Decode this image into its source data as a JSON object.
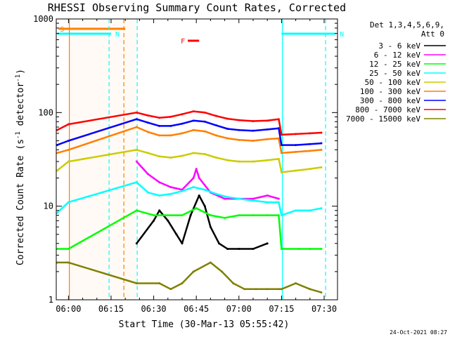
{
  "chart_data": {
    "type": "line",
    "title": "RHESSI Observing Summary Count Rates, Corrected",
    "xlabel": "Start Time (30-Mar-13 05:55:42)",
    "ylabel_main": "Corrected Count Rate (s",
    "ylabel_sup1": "-1",
    "ylabel_mid": " detector",
    "ylabel_sup2": "-1",
    "ylabel_end": ")",
    "yscale": "log",
    "xlim_minutes": [
      55.7,
      154.7
    ],
    "ylim": [
      1,
      1000
    ],
    "x_ticks": [
      {
        "minute": 60,
        "label": "06:00"
      },
      {
        "minute": 75,
        "label": "06:15"
      },
      {
        "minute": 90,
        "label": "06:30"
      },
      {
        "minute": 105,
        "label": "06:45"
      },
      {
        "minute": 120,
        "label": "07:00"
      },
      {
        "minute": 135,
        "label": "07:15"
      },
      {
        "minute": 150,
        "label": "07:30"
      }
    ],
    "y_ticks": [
      {
        "value": 1,
        "label": "1"
      },
      {
        "value": 10,
        "label": "10"
      },
      {
        "value": 100,
        "label": "100"
      },
      {
        "value": 1000,
        "label": "1000"
      }
    ],
    "legend_header": [
      "Det 1,3,4,5,6,9,",
      "Att 0"
    ],
    "legend_position": "right",
    "series": [
      {
        "name": "3 - 6 keV",
        "color": "#000000",
        "values": [
          [
            84,
            4
          ],
          [
            90,
            7
          ],
          [
            92,
            9
          ],
          [
            95,
            7
          ],
          [
            98,
            5
          ],
          [
            100,
            4
          ],
          [
            103,
            8
          ],
          [
            106,
            13
          ],
          [
            108,
            10
          ],
          [
            110,
            6
          ],
          [
            113,
            4
          ],
          [
            116,
            3.5
          ],
          [
            120,
            3.5
          ],
          [
            125,
            3.5
          ],
          [
            130,
            4
          ]
        ]
      },
      {
        "name": "6 - 12 keV",
        "color": "#ff00ff",
        "values": [
          [
            84,
            30
          ],
          [
            88,
            22
          ],
          [
            92,
            18
          ],
          [
            96,
            16
          ],
          [
            100,
            15
          ],
          [
            104,
            20
          ],
          [
            105,
            25
          ],
          [
            106,
            20
          ],
          [
            110,
            14
          ],
          [
            115,
            12
          ],
          [
            120,
            12
          ],
          [
            125,
            12
          ],
          [
            130,
            13
          ],
          [
            134,
            12
          ]
        ]
      },
      {
        "name": "12 - 25 keV",
        "color": "#00ff00",
        "values": [
          [
            56,
            3.5
          ],
          [
            60,
            3.5
          ],
          [
            84,
            9
          ],
          [
            90,
            8
          ],
          [
            95,
            8
          ],
          [
            100,
            8
          ],
          [
            105,
            9.5
          ],
          [
            110,
            8
          ],
          [
            115,
            7.5
          ],
          [
            120,
            8
          ],
          [
            125,
            8
          ],
          [
            130,
            8
          ],
          [
            134,
            8
          ],
          [
            135,
            3.5
          ],
          [
            141,
            3.5
          ],
          [
            145,
            3.5
          ],
          [
            149,
            3.5
          ]
        ]
      },
      {
        "name": "25 - 50 keV",
        "color": "#00ffff",
        "values": [
          [
            56,
            8.5
          ],
          [
            60,
            11
          ],
          [
            84,
            18
          ],
          [
            88,
            14
          ],
          [
            92,
            13
          ],
          [
            96,
            13.5
          ],
          [
            100,
            14.5
          ],
          [
            104,
            16
          ],
          [
            108,
            15
          ],
          [
            112,
            13.5
          ],
          [
            116,
            12.5
          ],
          [
            120,
            12
          ],
          [
            125,
            11.5
          ],
          [
            130,
            11
          ],
          [
            134,
            11
          ],
          [
            135,
            8
          ],
          [
            140,
            9
          ],
          [
            145,
            9
          ],
          [
            149,
            9.5
          ]
        ]
      },
      {
        "name": "50 - 100 keV",
        "color": "#cccc00",
        "values": [
          [
            56,
            24
          ],
          [
            60,
            30
          ],
          [
            84,
            40
          ],
          [
            88,
            37
          ],
          [
            92,
            34
          ],
          [
            96,
            33
          ],
          [
            100,
            34.5
          ],
          [
            104,
            37
          ],
          [
            108,
            36
          ],
          [
            112,
            33
          ],
          [
            116,
            31
          ],
          [
            120,
            30
          ],
          [
            125,
            30
          ],
          [
            130,
            31
          ],
          [
            134,
            32
          ],
          [
            135,
            23
          ],
          [
            140,
            24
          ],
          [
            145,
            25
          ],
          [
            149,
            26
          ]
        ]
      },
      {
        "name": "100 - 300 keV",
        "color": "#ff7f00",
        "values": [
          [
            56,
            37
          ],
          [
            60,
            40
          ],
          [
            84,
            70
          ],
          [
            88,
            62
          ],
          [
            92,
            57
          ],
          [
            96,
            57
          ],
          [
            100,
            60
          ],
          [
            104,
            65
          ],
          [
            108,
            63
          ],
          [
            112,
            57
          ],
          [
            116,
            53
          ],
          [
            120,
            51
          ],
          [
            125,
            50
          ],
          [
            130,
            52
          ],
          [
            134,
            53
          ],
          [
            135,
            37
          ],
          [
            140,
            38
          ],
          [
            145,
            39
          ],
          [
            149,
            40
          ]
        ]
      },
      {
        "name": "300 - 800 keV",
        "color": "#0000ff",
        "values": [
          [
            56,
            45
          ],
          [
            60,
            50
          ],
          [
            84,
            85
          ],
          [
            88,
            78
          ],
          [
            92,
            72
          ],
          [
            96,
            72
          ],
          [
            100,
            76
          ],
          [
            104,
            82
          ],
          [
            108,
            80
          ],
          [
            112,
            73
          ],
          [
            116,
            67
          ],
          [
            120,
            65
          ],
          [
            125,
            64
          ],
          [
            130,
            66
          ],
          [
            134,
            68
          ],
          [
            135,
            45
          ],
          [
            140,
            45
          ],
          [
            145,
            46
          ],
          [
            149,
            47
          ]
        ]
      },
      {
        "name": "800 - 7000 keV",
        "color": "#ff0000",
        "values": [
          [
            56,
            65
          ],
          [
            60,
            75
          ],
          [
            84,
            100
          ],
          [
            88,
            93
          ],
          [
            92,
            88
          ],
          [
            96,
            90
          ],
          [
            100,
            96
          ],
          [
            104,
            103
          ],
          [
            108,
            100
          ],
          [
            112,
            92
          ],
          [
            116,
            86
          ],
          [
            120,
            83
          ],
          [
            125,
            81
          ],
          [
            130,
            82
          ],
          [
            134,
            85
          ],
          [
            135,
            58
          ],
          [
            140,
            59
          ],
          [
            145,
            60
          ],
          [
            149,
            61
          ]
        ]
      },
      {
        "name": "7000 - 15000 keV",
        "color": "#808000",
        "values": [
          [
            56,
            2.5
          ],
          [
            60,
            2.5
          ],
          [
            84,
            1.5
          ],
          [
            92,
            1.5
          ],
          [
            96,
            1.3
          ],
          [
            100,
            1.5
          ],
          [
            104,
            2
          ],
          [
            110,
            2.5
          ],
          [
            114,
            2
          ],
          [
            118,
            1.5
          ],
          [
            122,
            1.3
          ],
          [
            126,
            1.3
          ],
          [
            130,
            1.3
          ],
          [
            134,
            1.3
          ],
          [
            135,
            1.3
          ],
          [
            140,
            1.5
          ],
          [
            145,
            1.3
          ],
          [
            149,
            1.2
          ]
        ]
      }
    ],
    "flags": [
      {
        "label": "S",
        "color": "#ff7f00",
        "start": 56.5,
        "end": 80
      },
      {
        "label": "N",
        "color": "#00ffff",
        "start": 56,
        "end": 75
      },
      {
        "label": "N",
        "color": "#00ffff",
        "start": 135,
        "end": 154
      },
      {
        "label": "F",
        "color": "#ff0000",
        "start": 102,
        "end": 106
      }
    ],
    "vlines": [
      {
        "minute": 60.3,
        "color": "#ff7f00",
        "style": "solid"
      },
      {
        "minute": 74.3,
        "color": "#00ffff",
        "style": "dashed"
      },
      {
        "minute": 79.5,
        "color": "#ff7f00",
        "style": "dashed"
      },
      {
        "minute": 84.2,
        "color": "#00ffff",
        "style": "dashed"
      },
      {
        "minute": 135.3,
        "color": "#00ffff",
        "style": "solid"
      },
      {
        "minute": 150.5,
        "color": "#00ffff",
        "style": "dashed"
      }
    ],
    "shaded_ranges": [
      {
        "from": 60.3,
        "to": 84.2,
        "color": "#ff7f00"
      }
    ],
    "timestamp": "24-Oct-2021 08:27"
  }
}
